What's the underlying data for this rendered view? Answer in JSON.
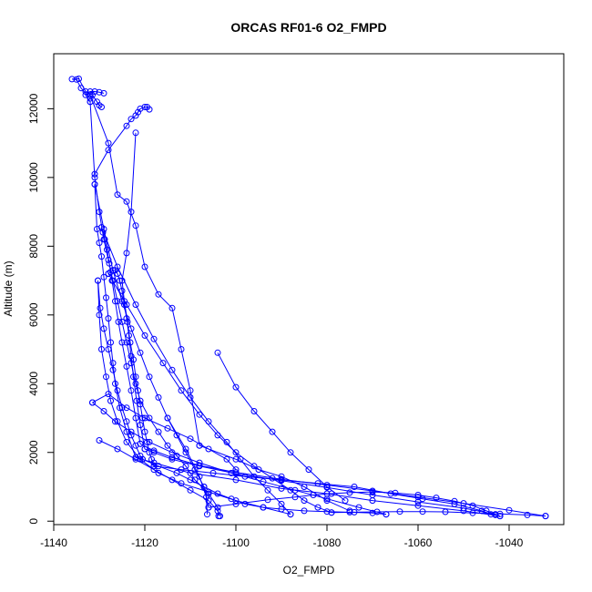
{
  "chart_data": {
    "type": "line",
    "title": "ORCAS RF01-6 O2_FMPD",
    "xlabel": "O2_FMPD",
    "ylabel": "Altitude (m)",
    "xlim": [
      -1140,
      -1028
    ],
    "ylim": [
      -100,
      13600
    ],
    "xticks": [
      -1140,
      -1120,
      -1100,
      -1080,
      -1060,
      -1040
    ],
    "yticks": [
      0,
      2000,
      4000,
      6000,
      8000,
      10000,
      12000
    ],
    "xtick_labels": [
      "-1140",
      "-1120",
      "-1100",
      "-1080",
      "-1060",
      "-1040"
    ],
    "ytick_labels": [
      "0",
      "2000",
      "4000",
      "6000",
      "8000",
      "10000",
      "12000"
    ],
    "grid": false,
    "color": "#0000ff",
    "markers": "open-circle",
    "series": [
      {
        "x": [
          -1103.8,
          -1104,
          -1106,
          -1109,
          -1111,
          -1113,
          -1115,
          -1117,
          -1119,
          -1121,
          -1122,
          -1123,
          -1124,
          -1125,
          -1126,
          -1127,
          -1128,
          -1129,
          -1130,
          -1131,
          -1132
        ],
        "y": [
          150,
          400,
          800,
          1200,
          1600,
          1900,
          2200,
          2600,
          3000,
          3500,
          4000,
          4600,
          5200,
          5800,
          6400,
          7000,
          7600,
          8200,
          9000,
          10000,
          12200
        ]
      },
      {
        "x": [
          -1132,
          -1133,
          -1132,
          -1131,
          -1130,
          -1129
        ],
        "y": [
          12200,
          12400,
          12500,
          12500,
          12480,
          12450
        ]
      },
      {
        "x": [
          -1132,
          -1134,
          -1135,
          -1136,
          -1134.5,
          -1133,
          -1131.5,
          -1130.5,
          -1130,
          -1129.5
        ],
        "y": [
          12300,
          12600,
          12850,
          12860,
          12870,
          12500,
          12400,
          12200,
          12100,
          12050
        ]
      },
      {
        "x": [
          -1132,
          -1128,
          -1126,
          -1124,
          -1122,
          -1120,
          -1117,
          -1114,
          -1112,
          -1110,
          -1108
        ],
        "y": [
          12400,
          11000,
          9500,
          9300,
          8600,
          7400,
          6600,
          6200,
          5000,
          3800,
          2200
        ]
      },
      {
        "x": [
          -1108,
          -1100,
          -1095,
          -1090,
          -1085,
          -1080,
          -1075
        ],
        "y": [
          2200,
          1800,
          1500,
          1300,
          1000,
          600,
          300
        ]
      },
      {
        "x": [
          -1131,
          -1128,
          -1124,
          -1123,
          -1122,
          -1121.5,
          -1121,
          -1120,
          -1119.5,
          -1119
        ],
        "y": [
          10100,
          10800,
          11500,
          11700,
          11800,
          11900,
          12000,
          12050,
          12050,
          11980
        ]
      },
      {
        "x": [
          -1122,
          -1123,
          -1124,
          -1125,
          -1124.5,
          -1123.8,
          -1123.2,
          -1122.5,
          -1122,
          -1121.5,
          -1121,
          -1120.5,
          -1120,
          -1119.5,
          -1119,
          -1118.5,
          -1118
        ],
        "y": [
          11300,
          9000,
          7800,
          7000,
          6400,
          5800,
          5200,
          4700,
          4200,
          3800,
          3400,
          3000,
          2600,
          2300,
          2000,
          1800,
          1600
        ]
      },
      {
        "x": [
          -1118,
          -1112,
          -1105,
          -1098,
          -1090,
          -1082,
          -1074,
          -1066,
          -1059,
          -1052,
          -1046,
          -1044,
          -1043,
          -1042
        ],
        "y": [
          1600,
          1500,
          1400,
          1300,
          1200,
          1100,
          1000,
          800,
          650,
          500,
          300,
          200,
          180,
          150
        ]
      },
      {
        "x": [
          -1042,
          -1050,
          -1060,
          -1070,
          -1080,
          -1090,
          -1100,
          -1110,
          -1118,
          -1122
        ],
        "y": [
          150,
          300,
          450,
          600,
          800,
          950,
          1200,
          1400,
          1700,
          1850
        ]
      },
      {
        "x": [
          -1122,
          -1124,
          -1125.5,
          -1126.5,
          -1127,
          -1127.5,
          -1128,
          -1128.5,
          -1129,
          -1129.5,
          -1130,
          -1130.5,
          -1131
        ],
        "y": [
          1850,
          2600,
          3300,
          4000,
          4600,
          5200,
          5900,
          6500,
          7100,
          7700,
          8100,
          8500,
          9800
        ]
      },
      {
        "x": [
          -1131,
          -1129,
          -1127,
          -1125,
          -1123,
          -1121,
          -1119,
          -1117,
          -1115,
          -1113,
          -1111,
          -1109,
          -1107,
          -1106
        ],
        "y": [
          9800,
          8500,
          7300,
          6400,
          5600,
          4900,
          4200,
          3600,
          3000,
          2500,
          2000,
          1500,
          1000,
          400
        ]
      },
      {
        "x": [
          -1106,
          -1100,
          -1093,
          -1087,
          -1083,
          -1079,
          -1075,
          -1070,
          -1065,
          -1060,
          -1056,
          -1052,
          -1048,
          -1045,
          -1043
        ],
        "y": [
          400,
          500,
          620,
          700,
          760,
          800,
          830,
          850,
          820,
          760,
          680,
          580,
          450,
          300,
          200
        ]
      },
      {
        "x": [
          -1043,
          -1050,
          -1060,
          -1070,
          -1080,
          -1090,
          -1100,
          -1108,
          -1114,
          -1118,
          -1120
        ],
        "y": [
          200,
          380,
          560,
          760,
          980,
          1180,
          1380,
          1600,
          1800,
          2000,
          2100
        ]
      },
      {
        "x": [
          -1120,
          -1121,
          -1121.8,
          -1122.5,
          -1123,
          -1123.5,
          -1124,
          -1124.5,
          -1125,
          -1125.5,
          -1126,
          -1126.5,
          -1127,
          -1127.5,
          -1128
        ],
        "y": [
          2100,
          2800,
          3500,
          4200,
          4800,
          5400,
          5900,
          6300,
          6700,
          7000,
          7200,
          7300,
          7300,
          7250,
          7200
        ]
      },
      {
        "x": [
          -1128,
          -1124,
          -1120,
          -1116,
          -1112,
          -1108,
          -1104,
          -1100,
          -1096,
          -1092,
          -1088,
          -1085,
          -1082,
          -1079
        ],
        "y": [
          7200,
          6300,
          5400,
          4600,
          3800,
          3100,
          2500,
          2000,
          1600,
          1250,
          900,
          600,
          400,
          250
        ]
      },
      {
        "x": [
          -1079,
          -1074,
          -1069,
          -1064,
          -1059,
          -1054,
          -1048,
          -1042,
          -1036,
          -1032
        ],
        "y": [
          250,
          260,
          270,
          280,
          280,
          270,
          240,
          210,
          180,
          150
        ]
      },
      {
        "x": [
          -1032,
          -1040,
          -1050,
          -1060,
          -1070,
          -1080,
          -1090,
          -1100,
          -1108,
          -1114,
          -1118,
          -1121
        ],
        "y": [
          150,
          320,
          520,
          700,
          880,
          1050,
          1220,
          1420,
          1620,
          1850,
          2050,
          2250
        ]
      },
      {
        "x": [
          -1121,
          -1122,
          -1123,
          -1124,
          -1125,
          -1125.8,
          -1126.5,
          -1127.2,
          -1127.8,
          -1128.3,
          -1128.8,
          -1129.2,
          -1129.5
        ],
        "y": [
          2250,
          3000,
          3800,
          4500,
          5200,
          5800,
          6400,
          7000,
          7500,
          7900,
          8200,
          8400,
          8550
        ]
      },
      {
        "x": [
          -1129.5,
          -1126,
          -1122,
          -1118,
          -1114,
          -1110,
          -1106,
          -1102,
          -1099,
          -1096,
          -1093,
          -1090,
          -1088
        ],
        "y": [
          8550,
          7400,
          6300,
          5300,
          4400,
          3600,
          2900,
          2300,
          1800,
          1300,
          900,
          500,
          200
        ]
      },
      {
        "x": [
          -1088,
          -1094,
          -1100,
          -1106,
          -1112,
          -1117,
          -1121,
          -1124,
          -1126,
          -1127.5,
          -1128.5,
          -1129.5,
          -1130,
          -1130.3
        ],
        "y": [
          200,
          400,
          600,
          850,
          1100,
          1400,
          1800,
          2300,
          2900,
          3500,
          4200,
          5000,
          6000,
          7000
        ]
      },
      {
        "x": [
          -1130.3,
          -1129.8,
          -1129,
          -1128,
          -1127,
          -1126,
          -1125,
          -1124,
          -1123,
          -1122,
          -1121,
          -1120.5
        ],
        "y": [
          7000,
          6200,
          5600,
          5000,
          4400,
          3800,
          3300,
          2900,
          2500,
          2200,
          1900,
          1800
        ]
      },
      {
        "x": [
          -1120.5,
          -1117,
          -1113,
          -1110,
          -1107,
          -1104,
          -1101,
          -1098,
          -1094,
          -1090,
          -1085,
          -1080,
          -1075,
          -1070,
          -1067
        ],
        "y": [
          1800,
          1600,
          1400,
          1200,
          1000,
          800,
          650,
          500,
          400,
          350,
          300,
          280,
          260,
          240,
          200
        ]
      },
      {
        "x": [
          -1067,
          -1073,
          -1080,
          -1087,
          -1094,
          -1101,
          -1108,
          -1114,
          -1119,
          -1123,
          -1126.5,
          -1129,
          -1131.5
        ],
        "y": [
          200,
          400,
          650,
          900,
          1150,
          1400,
          1700,
          2000,
          2300,
          2600,
          2900,
          3200,
          3450
        ]
      },
      {
        "x": [
          -1131.5,
          -1128,
          -1124,
          -1120,
          -1115,
          -1110,
          -1106,
          -1102,
          -1100
        ],
        "y": [
          3450,
          3700,
          3300,
          3000,
          2700,
          2400,
          2100,
          1800,
          1500
        ]
      },
      {
        "x": [
          -1130,
          -1126,
          -1122,
          -1118,
          -1114,
          -1110,
          -1106,
          -1104,
          -1103.5
        ],
        "y": [
          2350,
          2100,
          1800,
          1500,
          1200,
          900,
          600,
          300,
          150
        ]
      },
      {
        "x": [
          -1104,
          -1100,
          -1096,
          -1092,
          -1088,
          -1084,
          -1080,
          -1076
        ],
        "y": [
          4900,
          3900,
          3200,
          2600,
          2000,
          1500,
          1000,
          600
        ]
      },
      {
        "x": [
          -1115,
          -1111,
          -1108,
          -1106.5,
          -1106.3
        ],
        "y": [
          3000,
          2100,
          1300,
          700,
          200
        ]
      }
    ]
  }
}
